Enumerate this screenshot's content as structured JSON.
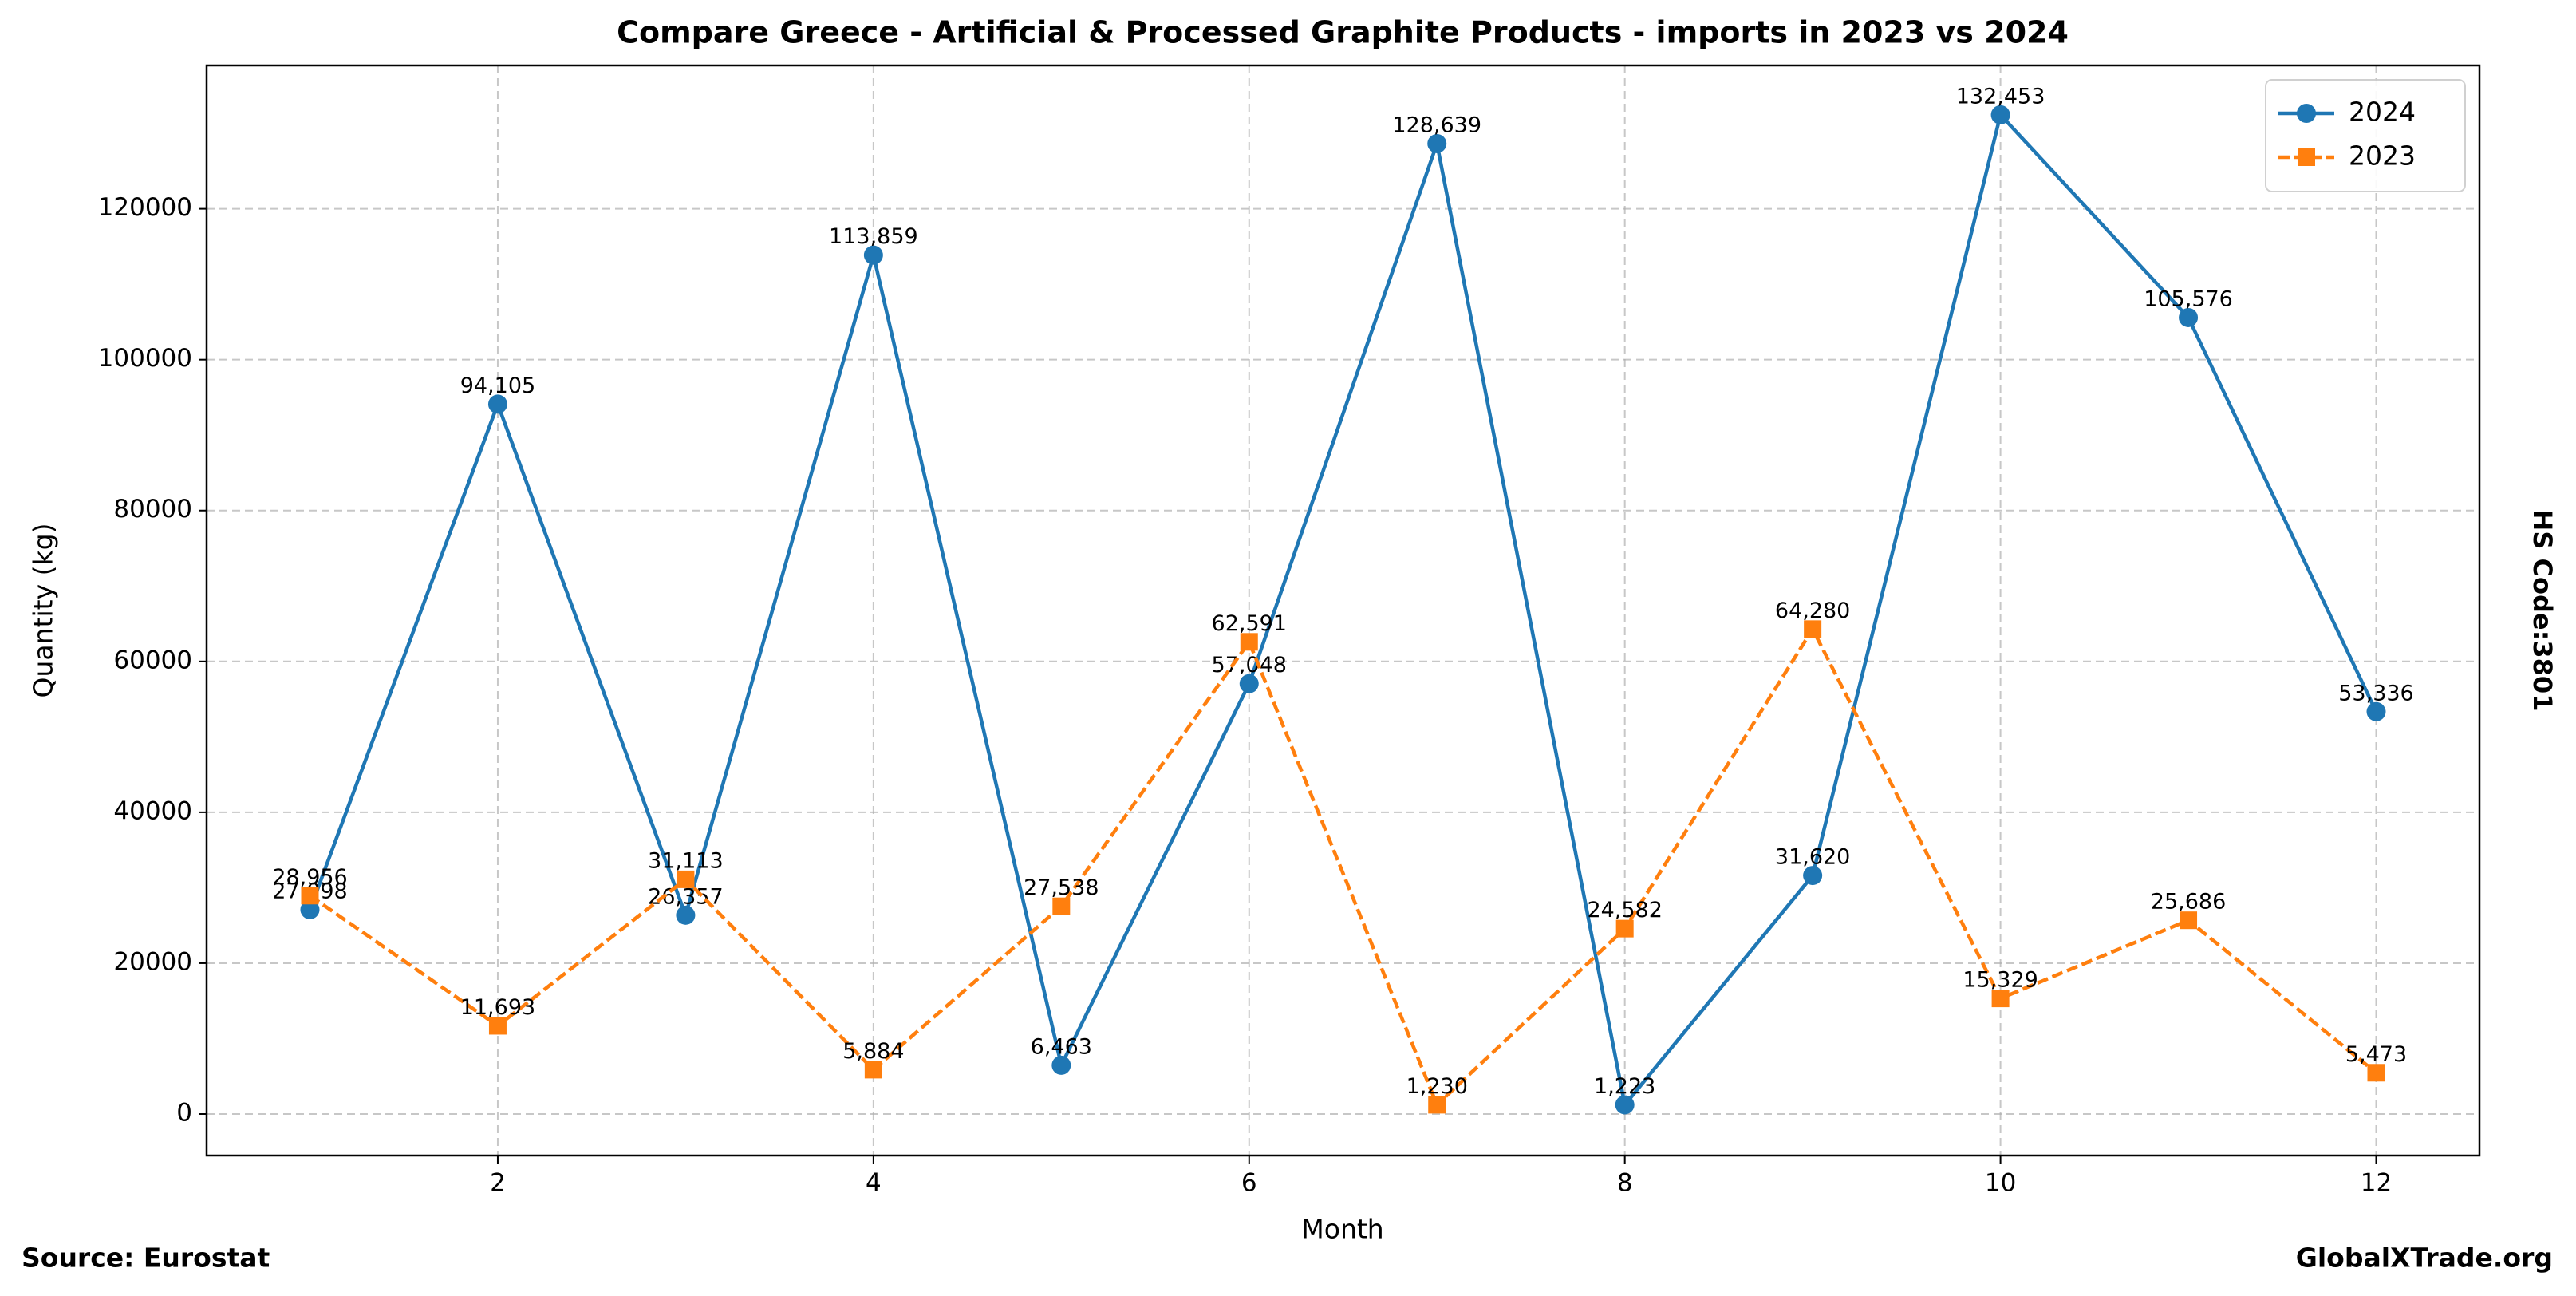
{
  "chart_data": {
    "type": "line",
    "title": "Compare Greece - Artificial & Processed Graphite Products - imports in 2023 vs 2024",
    "x_label": "Month",
    "y_label": "Quantity (kg)",
    "side_label": "HS Code:3801",
    "source": "Source: Eurostat",
    "watermark": "GlobalXTrade.org",
    "x": [
      1,
      2,
      3,
      4,
      5,
      6,
      7,
      8,
      9,
      10,
      11,
      12
    ],
    "xlim": [
      0.45,
      12.55
    ],
    "xticks": [
      2,
      4,
      6,
      8,
      10,
      12
    ],
    "ylim": [
      -5500,
      139000
    ],
    "yticks": [
      0,
      20000,
      40000,
      60000,
      80000,
      100000,
      120000
    ],
    "grid": true,
    "legend": "upper right",
    "series": [
      {
        "name": "2024",
        "color": "#1f77b4",
        "marker": "circle",
        "dash": "solid",
        "values": [
          27098,
          94105,
          26357,
          113859,
          6463,
          57048,
          128639,
          1223,
          31620,
          132453,
          105576,
          53336
        ],
        "value_labels": [
          "27,098",
          "94,105",
          "26,357",
          "113,859",
          "6,463",
          "57,048",
          "128,639",
          "1,223",
          "31,620",
          "132,453",
          "105,576",
          "53,336"
        ]
      },
      {
        "name": "2023",
        "color": "#ff7f0e",
        "marker": "square",
        "dash": "dashed",
        "values": [
          28956,
          11693,
          31113,
          5884,
          27538,
          62591,
          1230,
          24582,
          64280,
          15329,
          25686,
          5473
        ],
        "value_labels": [
          "28,956",
          "11,693",
          "31,113",
          "5,884",
          "27,538",
          "62,591",
          "1,230",
          "24,582",
          "64,280",
          "15,329",
          "25,686",
          "5,473"
        ]
      }
    ]
  }
}
